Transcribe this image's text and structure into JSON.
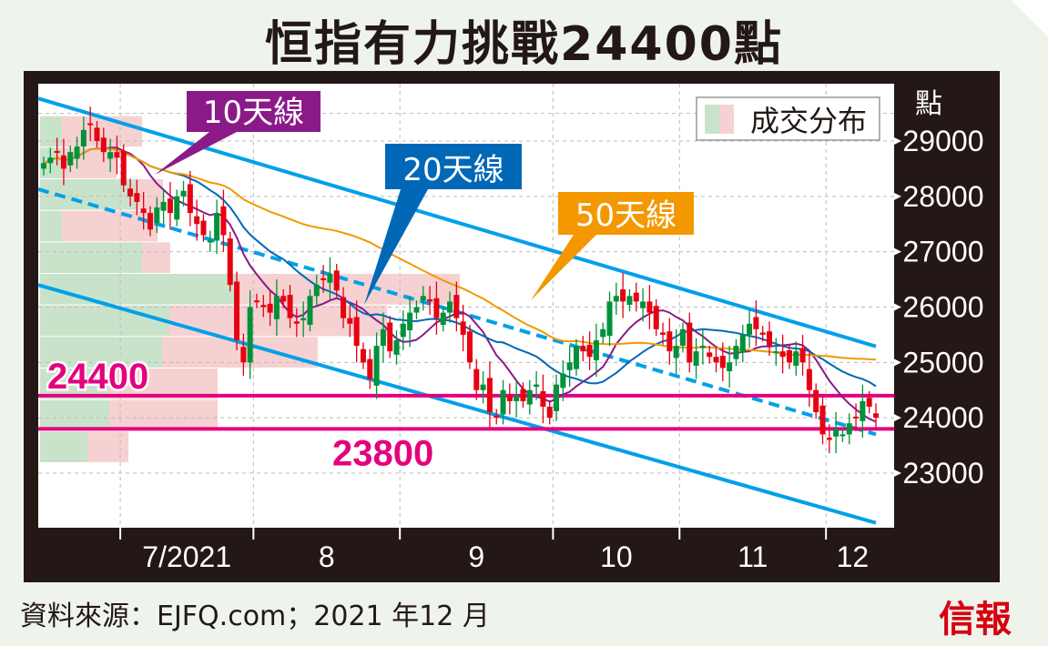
{
  "title": "恒指有力挑戰24400點",
  "footer": "資料來源：EJFQ.com；2021 年12 月",
  "logo_text": "信報",
  "chart_data": {
    "type": "candlestick",
    "title": "恒指有力挑戰24400點",
    "y_unit_label": "點",
    "ylim": [
      22000,
      30000
    ],
    "y_ticks": [
      23000,
      24000,
      25000,
      26000,
      27000,
      28000,
      29000
    ],
    "x_month_labels": [
      "7/2021",
      "8",
      "9",
      "10",
      "11",
      "12"
    ],
    "month_start_index": [
      12,
      32,
      54,
      77,
      96,
      118
    ],
    "closes": [
      28600,
      28700,
      28800,
      28500,
      28800,
      28900,
      29200,
      29300,
      29000,
      28800,
      28800,
      28700,
      28200,
      28000,
      27900,
      27700,
      27400,
      27800,
      27900,
      27700,
      28000,
      28100,
      27700,
      27500,
      27300,
      27200,
      27700,
      27300,
      26400,
      25400,
      25000,
      26000,
      26100,
      26000,
      25900,
      26200,
      26100,
      25800,
      25700,
      25800,
      26200,
      26400,
      26500,
      26600,
      26300,
      25800,
      25700,
      25300,
      25000,
      24700,
      25300,
      25600,
      25200,
      25400,
      25700,
      25900,
      26000,
      26200,
      26100,
      25800,
      25900,
      26100,
      25800,
      25500,
      25000,
      24500,
      24600,
      24100,
      24000,
      24500,
      24300,
      24400,
      24300,
      24500,
      24600,
      24200,
      24000,
      24600,
      24800,
      25000,
      25300,
      25200,
      25100,
      25400,
      25600,
      26100,
      26200,
      26100,
      26200,
      26100,
      26100,
      25900,
      25600,
      25500,
      25200,
      25300,
      25600,
      25000,
      25200,
      25300,
      25100,
      25000,
      24900,
      25000,
      25300,
      25500,
      25700,
      25600,
      25500,
      25300,
      25200,
      25100,
      25000,
      25200,
      25000,
      24500,
      24100,
      23700,
      23600,
      23800,
      23700,
      23900,
      24000,
      24300,
      24200,
      24000
    ],
    "moving_averages": [
      {
        "name": "10天線",
        "period": 10,
        "color": "#8b1a89"
      },
      {
        "name": "20天線",
        "period": 20,
        "color": "#0068b7"
      },
      {
        "name": "50天線",
        "period": 50,
        "color": "#f39800"
      }
    ],
    "channel": {
      "upper": [
        29770,
        25290
      ],
      "middle_dashed": [
        28130,
        23700
      ],
      "lower": [
        26400,
        22100
      ],
      "color": "#00a0e9"
    },
    "levels": [
      {
        "value": 24400,
        "label": "24400",
        "color": "#e4007f"
      },
      {
        "value": 23800,
        "label": "23800",
        "color": "#e4007f"
      }
    ],
    "volume_profile": {
      "legend": "成交分布",
      "band_top": 29450,
      "band_size": 570,
      "up_color": "#c9e3cb",
      "down_color": "#f6d1d1",
      "bands": [
        {
          "up": 24,
          "down": 88
        },
        {
          "up": 24,
          "down": 60
        },
        {
          "up": 106,
          "down": 29
        },
        {
          "up": 24,
          "down": 105
        },
        {
          "up": 112,
          "down": 31
        },
        {
          "up": 216,
          "down": 245
        },
        {
          "up": 142,
          "down": 239
        },
        {
          "up": 134,
          "down": 171
        },
        {
          "up": 76,
          "down": 119
        },
        {
          "up": 76,
          "down": 119
        },
        {
          "up": 52,
          "down": 45
        }
      ]
    },
    "up_color": "#00913a",
    "down_color": "#e60012"
  }
}
